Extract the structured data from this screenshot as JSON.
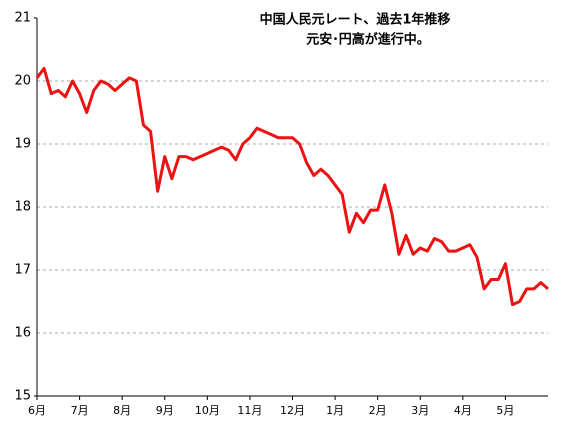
{
  "chart_data": {
    "type": "line",
    "title": [
      "中国人民元レート、過去1年推移",
      "元安･円高が進行中。"
    ],
    "categories": [
      "6月",
      null,
      null,
      null,
      null,
      null,
      "7月",
      null,
      null,
      null,
      null,
      null,
      "8月",
      null,
      null,
      null,
      null,
      null,
      "9月",
      null,
      null,
      null,
      null,
      null,
      "10月",
      null,
      null,
      null,
      null,
      null,
      "11月",
      null,
      null,
      null,
      null,
      null,
      "12月",
      null,
      null,
      null,
      null,
      null,
      "1月",
      null,
      null,
      null,
      null,
      null,
      "2月",
      null,
      null,
      null,
      null,
      null,
      "3月",
      null,
      null,
      null,
      null,
      null,
      "4月",
      null,
      null,
      null,
      null,
      null,
      "5月",
      null,
      null,
      null,
      null,
      null,
      null
    ],
    "series": [
      {
        "color": "#ee1111",
        "values": [
          20.05,
          20.2,
          19.8,
          19.85,
          19.75,
          20.0,
          19.8,
          19.5,
          19.85,
          20.0,
          19.95,
          19.85,
          19.95,
          20.05,
          20.0,
          19.3,
          19.2,
          18.25,
          18.8,
          18.45,
          18.8,
          18.8,
          18.75,
          18.8,
          18.85,
          18.9,
          18.95,
          18.9,
          18.75,
          19.0,
          19.1,
          19.25,
          19.2,
          19.15,
          19.1,
          19.1,
          19.1,
          19.0,
          18.7,
          18.5,
          18.6,
          18.5,
          18.35,
          18.2,
          17.6,
          17.9,
          17.75,
          17.95,
          17.95,
          18.35,
          17.9,
          17.25,
          17.55,
          17.25,
          17.35,
          17.3,
          17.5,
          17.45,
          17.3,
          17.3,
          17.35,
          17.4,
          17.2,
          16.7,
          16.85,
          16.85,
          17.1,
          16.45,
          16.5,
          16.7,
          16.7,
          16.8,
          16.7
        ]
      }
    ],
    "ylim": [
      15,
      21
    ],
    "yticks": [
      15,
      16,
      17,
      18,
      19,
      20,
      21
    ],
    "grid": true
  }
}
